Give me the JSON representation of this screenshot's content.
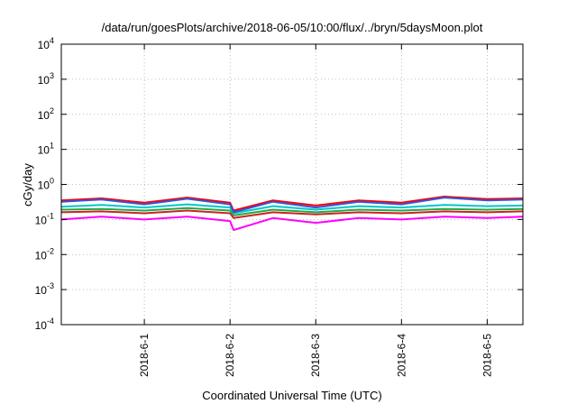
{
  "chart_data": {
    "type": "line",
    "title": "/data/run/goesPlots/archive/2018-06-05/10:00/flux/../bryn/5daysMoon.plot",
    "xlabel": "Coordinated Universal Time (UTC)",
    "ylabel": "cGy/day",
    "yscale": "log",
    "ylim": [
      0.0001,
      10000
    ],
    "xlim": [
      "2018-05-31 00:45",
      "2018-06-05 10:00"
    ],
    "y_ticks": [
      {
        "base": "10",
        "exp": "-4",
        "value": 0.0001
      },
      {
        "base": "10",
        "exp": "-3",
        "value": 0.001
      },
      {
        "base": "10",
        "exp": "-2",
        "value": 0.01
      },
      {
        "base": "10",
        "exp": "-1",
        "value": 0.1
      },
      {
        "base": "10",
        "exp": "0",
        "value": 1
      },
      {
        "base": "10",
        "exp": "1",
        "value": 10
      },
      {
        "base": "10",
        "exp": "2",
        "value": 100
      },
      {
        "base": "10",
        "exp": "3",
        "value": 1000
      },
      {
        "base": "10",
        "exp": "4",
        "value": 10000
      }
    ],
    "x_ticks": [
      "2018-6-1",
      "2018-6-2",
      "2018-6-3",
      "2018-6-4",
      "2018-6-5"
    ],
    "grid": true,
    "series": [
      {
        "color": "#ff00ff",
        "x": [
          "2018-05-31 00:45",
          "2018-05-31 12:00",
          "2018-06-01 00:00",
          "2018-06-01 12:00",
          "2018-06-02 00:00",
          "2018-06-02 01:00",
          "2018-06-02 12:00",
          "2018-06-03 00:00",
          "2018-06-03 12:00",
          "2018-06-04 00:00",
          "2018-06-04 12:00",
          "2018-06-05 00:00",
          "2018-06-05 10:00"
        ],
        "values": [
          0.1,
          0.12,
          0.1,
          0.12,
          0.09,
          0.05,
          0.11,
          0.08,
          0.11,
          0.1,
          0.12,
          0.11,
          0.12
        ]
      },
      {
        "color": "#cc2222",
        "x": [
          "2018-05-31 00:45",
          "2018-05-31 12:00",
          "2018-06-01 00:00",
          "2018-06-01 12:00",
          "2018-06-02 00:00",
          "2018-06-02 01:00",
          "2018-06-02 12:00",
          "2018-06-03 00:00",
          "2018-06-03 12:00",
          "2018-06-04 00:00",
          "2018-06-04 12:00",
          "2018-06-05 00:00",
          "2018-06-05 10:00"
        ],
        "values": [
          0.16,
          0.17,
          0.15,
          0.18,
          0.15,
          0.11,
          0.16,
          0.14,
          0.16,
          0.15,
          0.17,
          0.16,
          0.17
        ]
      },
      {
        "color": "#22aa44",
        "x": [
          "2018-05-31 00:45",
          "2018-05-31 12:00",
          "2018-06-01 00:00",
          "2018-06-01 12:00",
          "2018-06-02 00:00",
          "2018-06-02 01:00",
          "2018-06-02 12:00",
          "2018-06-03 00:00",
          "2018-06-03 12:00",
          "2018-06-04 00:00",
          "2018-06-04 12:00",
          "2018-06-05 00:00",
          "2018-06-05 10:00"
        ],
        "values": [
          0.19,
          0.2,
          0.18,
          0.21,
          0.18,
          0.13,
          0.19,
          0.16,
          0.19,
          0.18,
          0.2,
          0.19,
          0.2
        ]
      },
      {
        "color": "#00c8c8",
        "x": [
          "2018-05-31 00:45",
          "2018-05-31 12:00",
          "2018-06-01 00:00",
          "2018-06-01 12:00",
          "2018-06-02 00:00",
          "2018-06-02 01:00",
          "2018-06-02 12:00",
          "2018-06-03 00:00",
          "2018-06-03 12:00",
          "2018-06-04 00:00",
          "2018-06-04 12:00",
          "2018-06-05 00:00",
          "2018-06-05 10:00"
        ],
        "values": [
          0.23,
          0.26,
          0.22,
          0.27,
          0.22,
          0.15,
          0.24,
          0.19,
          0.24,
          0.22,
          0.26,
          0.24,
          0.25
        ]
      },
      {
        "color": "#ff0000",
        "x": [
          "2018-05-31 00:45",
          "2018-05-31 12:00",
          "2018-06-01 00:00",
          "2018-06-01 12:00",
          "2018-06-02 00:00",
          "2018-06-02 01:00",
          "2018-06-02 12:00",
          "2018-06-03 00:00",
          "2018-06-03 12:00",
          "2018-06-04 00:00",
          "2018-06-04 12:00",
          "2018-06-05 00:00",
          "2018-06-05 10:00"
        ],
        "values": [
          0.35,
          0.4,
          0.3,
          0.42,
          0.3,
          0.18,
          0.35,
          0.25,
          0.35,
          0.3,
          0.45,
          0.38,
          0.4
        ]
      },
      {
        "color": "#3355dd",
        "x": [
          "2018-05-31 00:45",
          "2018-05-31 12:00",
          "2018-06-01 00:00",
          "2018-06-01 12:00",
          "2018-06-02 00:00",
          "2018-06-02 01:00",
          "2018-06-02 12:00",
          "2018-06-03 00:00",
          "2018-06-03 12:00",
          "2018-06-04 00:00",
          "2018-06-04 12:00",
          "2018-06-05 00:00",
          "2018-06-05 10:00"
        ],
        "values": [
          0.32,
          0.37,
          0.27,
          0.39,
          0.27,
          0.16,
          0.32,
          0.22,
          0.32,
          0.27,
          0.42,
          0.35,
          0.37
        ]
      }
    ]
  }
}
